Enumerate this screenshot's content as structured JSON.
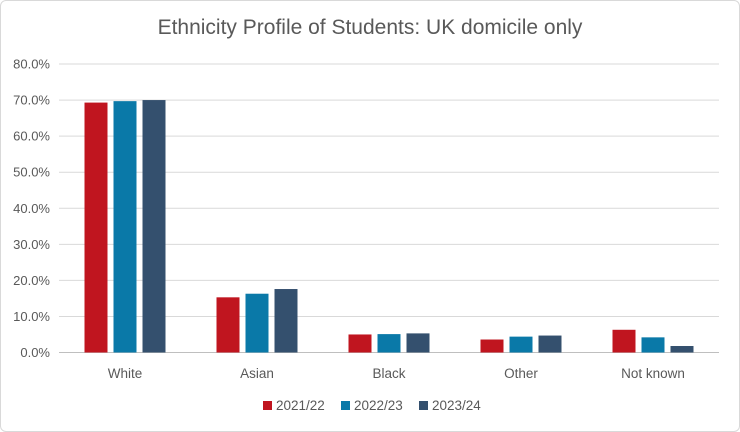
{
  "chart_data": {
    "type": "bar",
    "title": "Ethnicity Profile of Students: UK domicile only",
    "xlabel": "",
    "ylabel": "",
    "categories": [
      "White",
      "Asian",
      "Black",
      "Other",
      "Not known"
    ],
    "series": [
      {
        "name": "2021/22",
        "color": "#c0151f",
        "values": [
          69.3,
          15.3,
          5.0,
          3.6,
          6.3
        ]
      },
      {
        "name": "2022/23",
        "color": "#0a79a8",
        "values": [
          69.7,
          16.3,
          5.1,
          4.4,
          4.2
        ]
      },
      {
        "name": "2023/24",
        "color": "#34506e",
        "values": [
          70.0,
          17.6,
          5.3,
          4.7,
          1.8
        ]
      }
    ],
    "ylim": [
      0,
      80
    ],
    "yticks": [
      "0.0%",
      "10.0%",
      "20.0%",
      "30.0%",
      "40.0%",
      "50.0%",
      "60.0%",
      "70.0%",
      "80.0%"
    ],
    "grid": true,
    "legend_position": "bottom"
  }
}
